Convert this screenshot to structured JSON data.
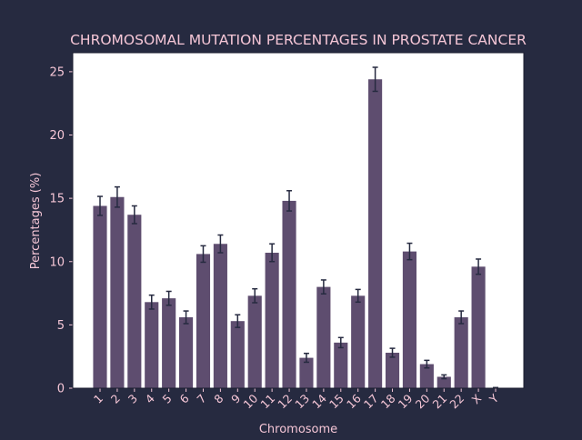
{
  "chart_data": {
    "type": "bar",
    "title": "CHROMOSOMAL MUTATION PERCENTAGES IN PROSTATE CANCER",
    "xlabel": "Chromosome",
    "ylabel": "Percentages (%)",
    "ylim": [
      0,
      26.5
    ],
    "yticks": [
      0,
      5,
      10,
      15,
      20,
      25
    ],
    "grid": false,
    "categories": [
      "1",
      "2",
      "3",
      "4",
      "5",
      "6",
      "7",
      "8",
      "9",
      "10",
      "11",
      "12",
      "13",
      "14",
      "15",
      "16",
      "17",
      "18",
      "19",
      "20",
      "21",
      "22",
      "X",
      "Y"
    ],
    "values": [
      14.4,
      15.1,
      13.7,
      6.8,
      7.1,
      5.6,
      10.6,
      11.4,
      5.3,
      7.3,
      10.7,
      14.8,
      2.4,
      8.0,
      3.6,
      7.3,
      24.4,
      2.8,
      10.8,
      1.9,
      0.9,
      5.6,
      9.6,
      0.0
    ],
    "errors": [
      0.75,
      0.8,
      0.7,
      0.55,
      0.55,
      0.5,
      0.65,
      0.7,
      0.5,
      0.55,
      0.7,
      0.8,
      0.35,
      0.55,
      0.4,
      0.5,
      0.95,
      0.35,
      0.65,
      0.3,
      0.15,
      0.5,
      0.6,
      0.05
    ]
  },
  "colors": {
    "background": "#262a40",
    "plot_background": "#ffffff",
    "bar": "#5e4d6f",
    "error_bar": "#262a40",
    "text": "#f5c6d6"
  }
}
